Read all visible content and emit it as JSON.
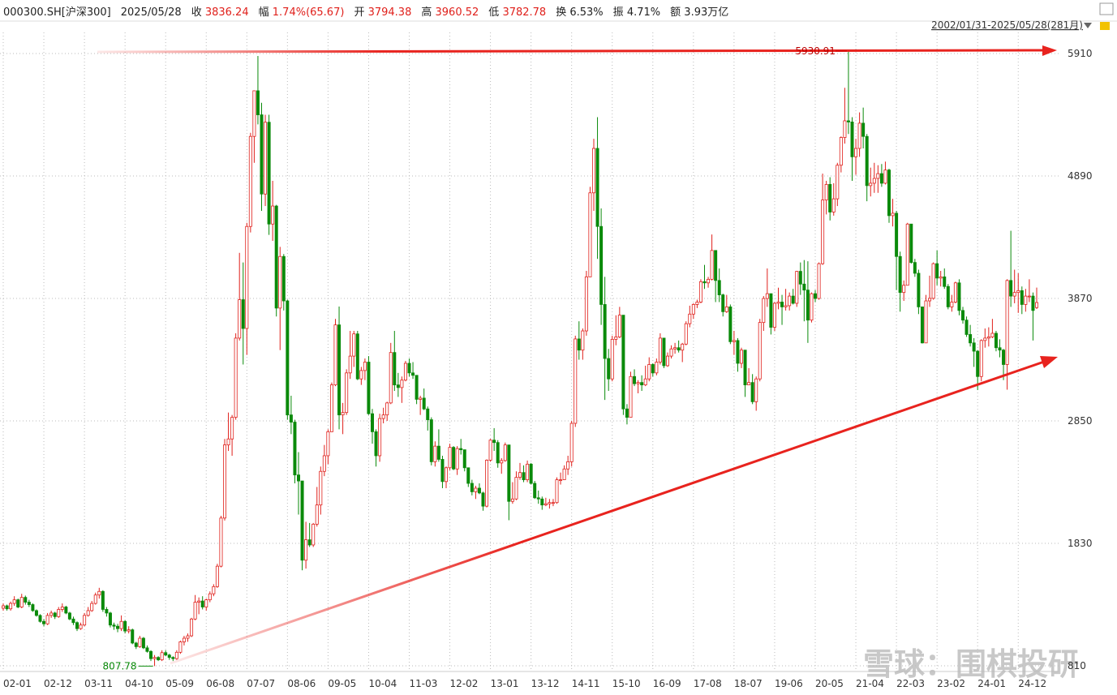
{
  "header": {
    "items": [
      {
        "label": null,
        "value": "000300.SH[沪深300]",
        "color": "#222"
      },
      {
        "label": null,
        "value": "2025/05/28",
        "color": "#222"
      },
      {
        "label": "收",
        "value": "3836.24",
        "color": "#e0201b"
      },
      {
        "label": "幅",
        "value": "1.74%(65.67)",
        "color": "#e0201b"
      },
      {
        "label": "开",
        "value": "3794.38",
        "color": "#e0201b"
      },
      {
        "label": "高",
        "value": "3960.52",
        "color": "#e0201b"
      },
      {
        "label": "低",
        "value": "3782.78",
        "color": "#e0201b"
      },
      {
        "label": "换",
        "value": "6.53%",
        "color": "#222"
      },
      {
        "label": "振",
        "value": "4.71%",
        "color": "#222"
      },
      {
        "label": "额",
        "value": "3.93万亿",
        "color": "#222"
      }
    ],
    "range": "2002/01/31-2025/05/28(281月)",
    "watermark": "雪球：围棋投研"
  },
  "chart_data": {
    "type": "candlestick",
    "up_color": "#e0201b",
    "down_color": "#0a8a0a",
    "grid": true,
    "ylim": [
      763,
      6086
    ],
    "yticks": [
      810,
      1830,
      2850,
      3870,
      4890,
      5910
    ],
    "categories": [
      "02-01",
      null,
      null,
      null,
      null,
      null,
      null,
      null,
      null,
      null,
      null,
      "02-12",
      null,
      null,
      null,
      null,
      null,
      null,
      null,
      null,
      null,
      null,
      "03-11",
      null,
      null,
      null,
      null,
      null,
      null,
      null,
      null,
      null,
      null,
      "04-10",
      null,
      null,
      null,
      null,
      null,
      null,
      null,
      null,
      null,
      null,
      "05-09",
      null,
      null,
      null,
      null,
      null,
      null,
      null,
      null,
      null,
      null,
      "06-08",
      null,
      null,
      null,
      null,
      null,
      null,
      null,
      null,
      null,
      null,
      "07-07",
      null,
      null,
      null,
      null,
      null,
      null,
      null,
      null,
      null,
      null,
      "08-06",
      null,
      null,
      null,
      null,
      null,
      null,
      null,
      null,
      null,
      null,
      "09-05",
      null,
      null,
      null,
      null,
      null,
      null,
      null,
      null,
      null,
      null,
      "10-04",
      null,
      null,
      null,
      null,
      null,
      null,
      null,
      null,
      null,
      null,
      "11-03",
      null,
      null,
      null,
      null,
      null,
      null,
      null,
      null,
      null,
      null,
      "12-02",
      null,
      null,
      null,
      null,
      null,
      null,
      null,
      null,
      null,
      null,
      "13-01",
      null,
      null,
      null,
      null,
      null,
      null,
      null,
      null,
      null,
      null,
      "13-12",
      null,
      null,
      null,
      null,
      null,
      null,
      null,
      null,
      null,
      null,
      "14-11",
      null,
      null,
      null,
      null,
      null,
      null,
      null,
      null,
      null,
      null,
      "15-10",
      null,
      null,
      null,
      null,
      null,
      null,
      null,
      null,
      null,
      null,
      "16-09",
      null,
      null,
      null,
      null,
      null,
      null,
      null,
      null,
      null,
      null,
      "17-08",
      null,
      null,
      null,
      null,
      null,
      null,
      null,
      null,
      null,
      null,
      "18-07",
      null,
      null,
      null,
      null,
      null,
      null,
      null,
      null,
      null,
      null,
      "19-06",
      null,
      null,
      null,
      null,
      null,
      null,
      null,
      null,
      null,
      null,
      "20-05",
      null,
      null,
      null,
      null,
      null,
      null,
      null,
      null,
      null,
      null,
      "21-04",
      null,
      null,
      null,
      null,
      null,
      null,
      null,
      null,
      null,
      null,
      "22-03",
      null,
      null,
      null,
      null,
      null,
      null,
      null,
      null,
      null,
      null,
      "23-02",
      null,
      null,
      null,
      null,
      null,
      null,
      null,
      null,
      null,
      null,
      "24-01",
      null,
      null,
      null,
      null,
      null,
      null,
      null,
      null,
      null,
      null,
      "24-12",
      null,
      null,
      null,
      null,
      null
    ],
    "open": [
      1290,
      1310,
      1285,
      1330,
      1360,
      1300,
      1380,
      1340,
      1320,
      1270,
      1230,
      1180,
      1160,
      1230,
      1250,
      1220,
      1280,
      1300,
      1250,
      1200,
      1170,
      1120,
      1150,
      1230,
      1270,
      1330,
      1400,
      1430,
      1280,
      1250,
      1150,
      1140,
      1120,
      1180,
      1100,
      1110,
      1000,
      970,
      1040,
      960,
      930,
      870,
      880,
      860,
      920,
      900,
      880,
      870,
      923,
      1010,
      1040,
      1060,
      1200,
      1340,
      1350,
      1300,
      1360,
      1410,
      1470,
      1640,
      2041,
      2650,
      2700,
      2880,
      3540,
      3860,
      3620,
      4470,
      5220,
      5600,
      5400,
      4740,
      5338,
      4490,
      4640,
      3790,
      4220,
      3850,
      2900,
      2840,
      2400,
      2350,
      1690,
      1860,
      1817,
      1990,
      2150,
      2430,
      2560,
      2760,
      3150,
      3650,
      2900,
      2920,
      3250,
      3390,
      3575,
      3200,
      3270,
      3340,
      2910,
      2760,
      2560,
      2870,
      2900,
      3000,
      3420,
      3150,
      3128,
      3190,
      3330,
      3250,
      3230,
      3030,
      3040,
      2950,
      2860,
      2510,
      2640,
      2530,
      2345,
      2460,
      2630,
      2450,
      2620,
      2610,
      2460,
      2330,
      2260,
      2290,
      2250,
      2140,
      2523,
      2690,
      2670,
      2500,
      2520,
      2650,
      2180,
      2200,
      2380,
      2420,
      2360,
      2490,
      2330,
      2210,
      2200,
      2150,
      2160,
      2170,
      2170,
      2360,
      2360,
      2450,
      2510,
      2830,
      3533,
      3440,
      3600,
      4050,
      4750,
      5120,
      4470,
      3820,
      3370,
      3200,
      3530,
      3550,
      3731,
      2950,
      2880,
      3220,
      3160,
      3170,
      3150,
      3200,
      3320,
      3250,
      3340,
      3540,
      3310,
      3390,
      3450,
      3460,
      3440,
      3490,
      3660,
      3740,
      3820,
      3840,
      4010,
      4000,
      4030,
      4270,
      4020,
      3900,
      3760,
      3800,
      3510,
      3520,
      3330,
      3440,
      3150,
      3170,
      3010,
      3200,
      3670,
      3870,
      3910,
      3630,
      3830,
      3840,
      3800,
      3810,
      3890,
      3830,
      4096,
      3990,
      3940,
      3690,
      3910,
      3870,
      4160,
      4690,
      4820,
      4590,
      4700,
      4980,
      5211,
      5350,
      5340,
      5050,
      5120,
      5330,
      5220,
      4810,
      4830,
      4870,
      4910,
      4830,
      4940,
      4560,
      4580,
      4220,
      3920,
      3980,
      4490,
      4170,
      4080,
      3800,
      3500,
      3850,
      3871,
      4160,
      4040,
      4050,
      3970,
      3800,
      3840,
      4000,
      3770,
      3690,
      3570,
      3500,
      3431,
      3220,
      3520,
      3540,
      3550,
      3580,
      3460,
      3440,
      3320,
      4020,
      3890,
      3920,
      3935,
      3820,
      3890,
      3890,
      3794.38
    ],
    "high": [
      1330,
      1320,
      1345,
      1390,
      1370,
      1410,
      1395,
      1360,
      1330,
      1280,
      1240,
      1200,
      1250,
      1270,
      1260,
      1300,
      1330,
      1310,
      1260,
      1220,
      1180,
      1170,
      1250,
      1300,
      1350,
      1420,
      1460,
      1440,
      1300,
      1260,
      1170,
      1160,
      1230,
      1190,
      1140,
      1120,
      1010,
      1060,
      1050,
      980,
      940,
      900,
      890,
      940,
      940,
      910,
      890,
      940,
      1020,
      1060,
      1080,
      1210,
      1400,
      1380,
      1390,
      1370,
      1430,
      1490,
      1660,
      2060,
      2700,
      2920,
      2900,
      3580,
      4250,
      4170,
      4500,
      5250,
      5600,
      5890,
      5500,
      5400,
      5400,
      4850,
      4650,
      4300,
      4240,
      3860,
      3060,
      2860,
      2590,
      2350,
      2010,
      2000,
      2000,
      2300,
      2470,
      2650,
      2780,
      3170,
      3700,
      3803,
      3000,
      3280,
      3600,
      3600,
      3600,
      3300,
      3370,
      3390,
      2950,
      2780,
      2910,
      2960,
      3010,
      3500,
      3600,
      3250,
      3220,
      3350,
      3370,
      3340,
      3230,
      3060,
      3120,
      2970,
      2880,
      2680,
      2780,
      2560,
      2470,
      2660,
      2640,
      2640,
      2700,
      2610,
      2460,
      2360,
      2310,
      2330,
      2260,
      2530,
      2700,
      2790,
      2690,
      2540,
      2670,
      2650,
      2340,
      2430,
      2500,
      2480,
      2520,
      2500,
      2350,
      2270,
      2220,
      2210,
      2200,
      2200,
      2380,
      2420,
      2480,
      2560,
      2850,
      3560,
      3680,
      3620,
      4100,
      4800,
      5200,
      5380,
      4620,
      4050,
      3450,
      3560,
      3730,
      3800,
      3730,
      2990,
      3260,
      3280,
      3190,
      3230,
      3310,
      3380,
      3330,
      3370,
      3580,
      3540,
      3420,
      3480,
      3500,
      3520,
      3500,
      3680,
      3810,
      3830,
      3860,
      4030,
      4150,
      4050,
      4403,
      4270,
      4120,
      3910,
      3900,
      3820,
      3600,
      3540,
      3460,
      3440,
      3290,
      3240,
      3220,
      3700,
      3890,
      4120,
      3910,
      3840,
      3960,
      3900,
      3950,
      3920,
      3950,
      4100,
      4170,
      4190,
      4180,
      3920,
      3940,
      4170,
      4910,
      4850,
      4880,
      4830,
      5000,
      5220,
      5625,
      5930.91,
      5380,
      5200,
      5420,
      5460,
      5240,
      4960,
      5000,
      4980,
      4990,
      5010,
      4950,
      4700,
      4600,
      4260,
      4020,
      4500,
      4490,
      4200,
      4110,
      3800,
      3900,
      4060,
      4170,
      4270,
      4100,
      4120,
      3990,
      3900,
      4010,
      4030,
      3800,
      3720,
      3650,
      3540,
      3440,
      3530,
      3620,
      3630,
      3700,
      3600,
      3530,
      3450,
      4030,
      4434,
      4110,
      4080,
      3970,
      3950,
      4030,
      3920,
      3960.52
    ],
    "low": [
      1270,
      1270,
      1270,
      1310,
      1290,
      1290,
      1320,
      1300,
      1260,
      1220,
      1170,
      1140,
      1150,
      1210,
      1200,
      1210,
      1260,
      1240,
      1190,
      1150,
      1100,
      1110,
      1140,
      1220,
      1260,
      1320,
      1370,
      1260,
      1220,
      1130,
      1110,
      1090,
      1100,
      1080,
      1080,
      990,
      950,
      960,
      950,
      920,
      850,
      807.78,
      850,
      850,
      890,
      860,
      850,
      860,
      910,
      980,
      1010,
      1050,
      1190,
      1240,
      1280,
      1270,
      1340,
      1390,
      1460,
      1630,
      2020,
      2600,
      2560,
      2860,
      3520,
      3320,
      3400,
      4420,
      5000,
      5320,
      4600,
      4640,
      4400,
      4350,
      3720,
      3440,
      3770,
      2860,
      2740,
      2330,
      2070,
      1606,
      1620,
      1800,
      1800,
      1970,
      2070,
      2390,
      2490,
      2760,
      3140,
      2780,
      2740,
      2900,
      3200,
      3300,
      3190,
      3150,
      3190,
      2900,
      2660,
      2470,
      2510,
      2830,
      2850,
      2990,
      3100,
      3050,
      3000,
      3180,
      3220,
      3200,
      2990,
      2900,
      2940,
      2770,
      2480,
      2470,
      2510,
      2290,
      2290,
      2440,
      2440,
      2400,
      2570,
      2430,
      2300,
      2230,
      2200,
      2240,
      2102,
      2130,
      2510,
      2600,
      2460,
      2410,
      2510,
      2023,
      2160,
      2190,
      2360,
      2340,
      2340,
      2320,
      2200,
      2160,
      2110,
      2140,
      2120,
      2140,
      2160,
      2320,
      2360,
      2400,
      2470,
      2800,
      3360,
      3360,
      3560,
      4050,
      4600,
      4200,
      3650,
      3025,
      3100,
      3180,
      3480,
      3540,
      2900,
      2821,
      2880,
      3140,
      3080,
      3100,
      3140,
      3180,
      3220,
      3230,
      3320,
      3290,
      3300,
      3370,
      3410,
      3420,
      3340,
      3480,
      3630,
      3700,
      3790,
      3830,
      3950,
      3960,
      4020,
      3840,
      3840,
      3720,
      3750,
      3490,
      3400,
      3260,
      3290,
      3050,
      3150,
      2990,
      2935,
      3180,
      3600,
      3800,
      3570,
      3600,
      3780,
      3650,
      3770,
      3770,
      3820,
      3800,
      3900,
      3680,
      3500,
      3670,
      3840,
      3860,
      4150,
      4570,
      4520,
      4560,
      4640,
      4920,
      5160,
      5240,
      4850,
      4900,
      5050,
      5120,
      4680,
      4720,
      4750,
      4750,
      4800,
      4820,
      4500,
      4470,
      3940,
      3760,
      3850,
      3980,
      4160,
      4050,
      3740,
      3495,
      3520,
      3800,
      3860,
      3980,
      3970,
      3950,
      3780,
      3760,
      3830,
      3730,
      3660,
      3550,
      3470,
      3300,
      3108,
      3180,
      3460,
      3470,
      3540,
      3430,
      3380,
      3190,
      3110,
      3800,
      3830,
      3750,
      3740,
      3760,
      3840,
      3520,
      3782.78
    ],
    "close": [
      1310,
      1285,
      1330,
      1360,
      1300,
      1380,
      1340,
      1320,
      1270,
      1230,
      1180,
      1160,
      1230,
      1250,
      1220,
      1280,
      1300,
      1250,
      1200,
      1170,
      1120,
      1150,
      1230,
      1270,
      1330,
      1400,
      1430,
      1280,
      1250,
      1150,
      1140,
      1120,
      1180,
      1100,
      1110,
      1000,
      970,
      1040,
      960,
      930,
      870,
      880,
      860,
      920,
      900,
      880,
      870,
      923,
      1010,
      1040,
      1060,
      1200,
      1340,
      1350,
      1300,
      1360,
      1410,
      1470,
      1640,
      2041,
      2650,
      2700,
      2880,
      3540,
      3860,
      3620,
      4470,
      5220,
      5600,
      5400,
      4740,
      5338,
      4490,
      4640,
      3790,
      4220,
      3850,
      2900,
      2840,
      2400,
      2350,
      1690,
      1860,
      1817,
      1990,
      2150,
      2430,
      2560,
      2760,
      3150,
      3650,
      2900,
      2920,
      3250,
      3390,
      3575,
      3200,
      3270,
      3340,
      2910,
      2760,
      2560,
      2870,
      2900,
      3000,
      3420,
      3150,
      3128,
      3190,
      3330,
      3250,
      3230,
      3030,
      3040,
      2950,
      2860,
      2510,
      2640,
      2530,
      2345,
      2460,
      2630,
      2450,
      2620,
      2610,
      2460,
      2330,
      2260,
      2290,
      2250,
      2140,
      2523,
      2690,
      2670,
      2500,
      2520,
      2650,
      2180,
      2200,
      2380,
      2420,
      2360,
      2490,
      2330,
      2210,
      2200,
      2150,
      2160,
      2170,
      2170,
      2360,
      2360,
      2450,
      2510,
      2830,
      3533,
      3440,
      3600,
      4050,
      4750,
      5120,
      4470,
      3820,
      3370,
      3200,
      3530,
      3550,
      3731,
      2950,
      2880,
      3220,
      3160,
      3170,
      3150,
      3200,
      3320,
      3250,
      3340,
      3540,
      3310,
      3390,
      3450,
      3460,
      3440,
      3490,
      3660,
      3740,
      3820,
      3840,
      4010,
      4000,
      4030,
      4270,
      4020,
      3900,
      3760,
      3800,
      3510,
      3520,
      3330,
      3440,
      3150,
      3170,
      3010,
      3200,
      3670,
      3870,
      3910,
      3630,
      3830,
      3840,
      3800,
      3810,
      3890,
      3830,
      4096,
      3990,
      3940,
      3690,
      3910,
      3870,
      4160,
      4690,
      4820,
      4590,
      4700,
      4980,
      5211,
      5350,
      5340,
      5050,
      5120,
      5330,
      5220,
      4810,
      4830,
      4870,
      4910,
      4830,
      4940,
      4560,
      4580,
      4220,
      3920,
      3980,
      4490,
      4170,
      4080,
      3800,
      3500,
      3850,
      3871,
      4160,
      4040,
      4050,
      3970,
      3800,
      3840,
      4000,
      3770,
      3690,
      3570,
      3500,
      3431,
      3220,
      3520,
      3540,
      3550,
      3580,
      3460,
      3440,
      3320,
      4020,
      3890,
      3920,
      3935,
      3820,
      3890,
      3890,
      3770,
      3836.24
    ]
  }
}
